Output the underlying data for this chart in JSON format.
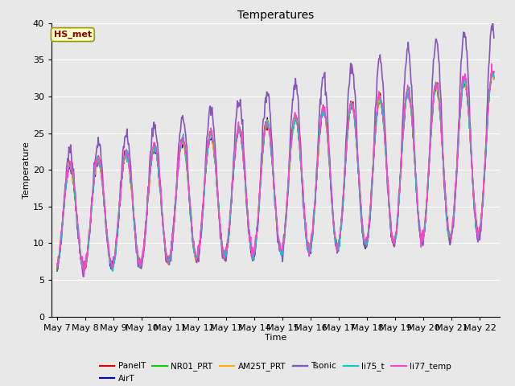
{
  "title": "Temperatures",
  "xlabel": "Time",
  "ylabel": "Temperature",
  "ylim": [
    0,
    40
  ],
  "series_names": [
    "PanelT",
    "AirT",
    "NR01_PRT",
    "AM25T_PRT",
    "Tsonic",
    "li75_t",
    "li77_temp"
  ],
  "series_colors": [
    "#dd0000",
    "#0000cc",
    "#00cc00",
    "#ffaa00",
    "#8855bb",
    "#00cccc",
    "#ff44cc"
  ],
  "series_linewidths": [
    1.0,
    1.0,
    1.0,
    1.0,
    1.2,
    1.0,
    1.0
  ],
  "annotation_text": "HS_met",
  "annotation_box_color": "#ffffcc",
  "annotation_text_color": "#880000",
  "annotation_border_color": "#999900",
  "x_tick_labels": [
    "May 7",
    "May 8",
    "May 9",
    "May 10",
    "May 11",
    "May 12",
    "May 13",
    "May 14",
    "May 15",
    "May 16",
    "May 17",
    "May 18",
    "May 19",
    "May 20",
    "May 21",
    "May 22"
  ],
  "background_color": "#e8e8e8",
  "grid_color": "#ffffff",
  "fig_background": "#e8e8e8",
  "legend_row1": [
    "PanelT",
    "AirT",
    "NR01_PRT",
    "AM25T_PRT",
    "Tsonic",
    "li75_t"
  ],
  "legend_row2": [
    "li77_temp"
  ]
}
